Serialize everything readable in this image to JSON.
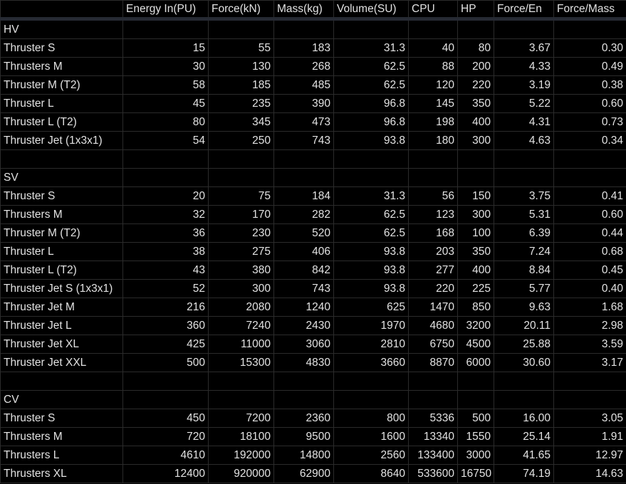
{
  "columns": [
    "",
    "Energy In(PU)",
    "Force(kN)",
    "Mass(kg)",
    "Volume(SU)",
    "CPU",
    "HP",
    "Force/En",
    "Force/Mass"
  ],
  "sections": [
    {
      "label": "HV",
      "rows": [
        [
          "Thruster S",
          "15",
          "55",
          "183",
          "31.3",
          "40",
          "80",
          "3.67",
          "0.30"
        ],
        [
          "Thrusters M",
          "30",
          "130",
          "268",
          "62.5",
          "88",
          "200",
          "4.33",
          "0.49"
        ],
        [
          "Thruster M (T2)",
          "58",
          "185",
          "485",
          "62.5",
          "120",
          "220",
          "3.19",
          "0.38"
        ],
        [
          "Thruster L",
          "45",
          "235",
          "390",
          "96.8",
          "145",
          "350",
          "5.22",
          "0.60"
        ],
        [
          "Thruster L (T2)",
          "80",
          "345",
          "473",
          "96.8",
          "198",
          "400",
          "4.31",
          "0.73"
        ],
        [
          "Thruster Jet (1x3x1)",
          "54",
          "250",
          "743",
          "93.8",
          "180",
          "300",
          "4.63",
          "0.34"
        ]
      ]
    },
    {
      "label": "SV",
      "rows": [
        [
          "Thruster S",
          "20",
          "75",
          "184",
          "31.3",
          "56",
          "150",
          "3.75",
          "0.41"
        ],
        [
          "Thrusters M",
          "32",
          "170",
          "282",
          "62.5",
          "123",
          "300",
          "5.31",
          "0.60"
        ],
        [
          "Thruster M (T2)",
          "36",
          "230",
          "520",
          "62.5",
          "168",
          "100",
          "6.39",
          "0.44"
        ],
        [
          "Thruster L",
          "38",
          "275",
          "406",
          "93.8",
          "203",
          "350",
          "7.24",
          "0.68"
        ],
        [
          "Thruster L (T2)",
          "43",
          "380",
          "842",
          "93.8",
          "277",
          "400",
          "8.84",
          "0.45"
        ],
        [
          "Thruster Jet S (1x3x1)",
          "52",
          "300",
          "743",
          "93.8",
          "220",
          "225",
          "5.77",
          "0.40"
        ],
        [
          "Thruster Jet M",
          "216",
          "2080",
          "1240",
          "625",
          "1470",
          "850",
          "9.63",
          "1.68"
        ],
        [
          "Thruster Jet L",
          "360",
          "7240",
          "2430",
          "1970",
          "4680",
          "3200",
          "20.11",
          "2.98"
        ],
        [
          "Thruster Jet XL",
          "425",
          "11000",
          "3060",
          "2810",
          "6750",
          "4500",
          "25.88",
          "3.59"
        ],
        [
          "Thruster Jet XXL",
          "500",
          "15300",
          "4830",
          "3660",
          "8870",
          "6000",
          "30.60",
          "3.17"
        ]
      ]
    },
    {
      "label": "CV",
      "rows": [
        [
          "Thruster S",
          "450",
          "7200",
          "2360",
          "800",
          "5336",
          "500",
          "16.00",
          "3.05"
        ],
        [
          "Thrusters M",
          "720",
          "18100",
          "9500",
          "1600",
          "13340",
          "1550",
          "25.14",
          "1.91"
        ],
        [
          "Thrusters L",
          "4610",
          "192000",
          "14800",
          "2560",
          "133400",
          "3000",
          "41.65",
          "12.97"
        ],
        [
          "Thrusters XL",
          "12400",
          "920000",
          "62900",
          "8640",
          "533600",
          "16750",
          "74.19",
          "14.63"
        ]
      ]
    }
  ]
}
